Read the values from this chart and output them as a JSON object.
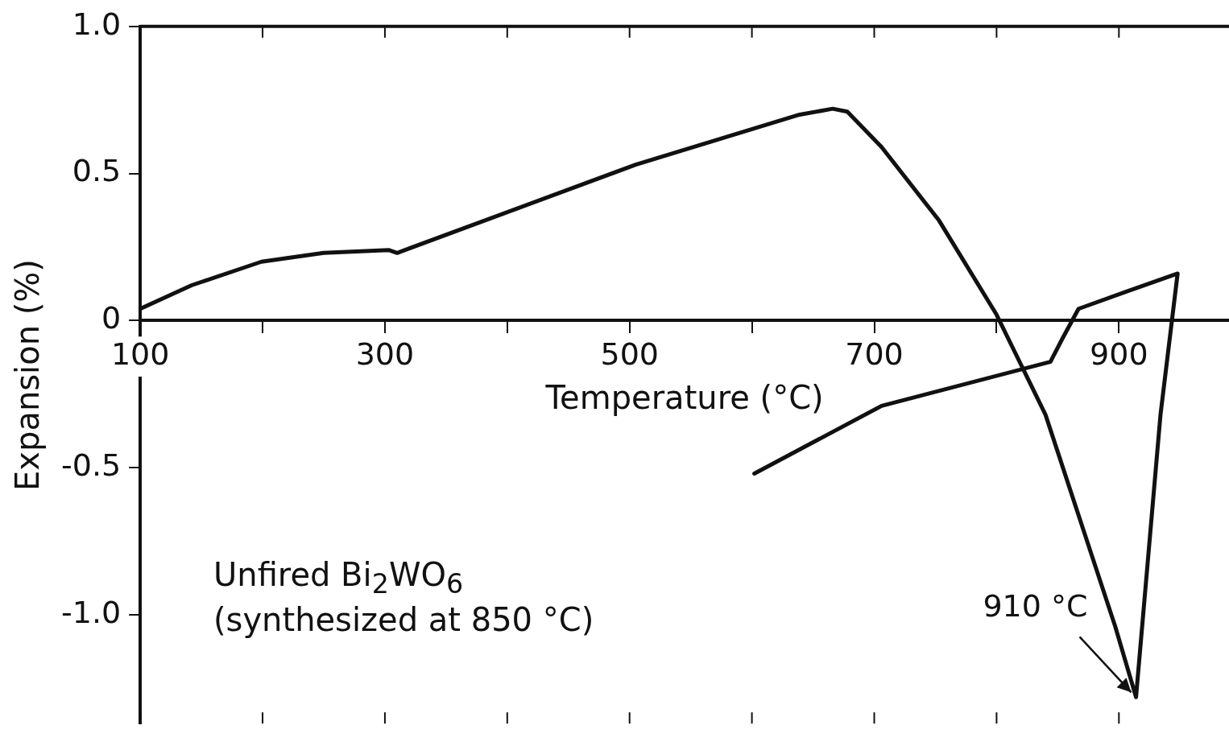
{
  "chart_data": {
    "type": "line",
    "xlabel": "Temperature (°C)",
    "ylabel": "Expansion (%)",
    "x": [
      100,
      142,
      199,
      250,
      303,
      310,
      505,
      639,
      666,
      678,
      706,
      753,
      800,
      840,
      874,
      897,
      914,
      934,
      948,
      907,
      867,
      854,
      844,
      706,
      602
    ],
    "series": [
      {
        "color": "#111111",
        "values": [
          0.04,
          0.12,
          0.2,
          0.23,
          0.24,
          0.23,
          0.53,
          0.7,
          0.72,
          0.71,
          0.59,
          0.34,
          0.02,
          -0.32,
          -0.75,
          -1.04,
          -1.28,
          -0.32,
          0.16,
          0.1,
          0.04,
          -0.06,
          -0.14,
          -0.29,
          -0.52
        ]
      }
    ],
    "xlim": [
      100,
      990
    ],
    "xticks": [
      100,
      {
        "value": 200,
        "label": null
      },
      300,
      {
        "value": 400,
        "label": null
      },
      500,
      {
        "value": 600,
        "label": null
      },
      700,
      {
        "value": 800,
        "label": null
      },
      900
    ],
    "ylim": [
      -1.37,
      1.0
    ],
    "yticks": [
      {
        "value": 1,
        "label": "1.0"
      },
      0.5,
      0,
      -0.5,
      {
        "value": -1,
        "label": "-1.0"
      }
    ],
    "grid": false,
    "legend": false,
    "marker": "none",
    "line_style": "solid",
    "annotations": [
      {
        "text": "910 °C",
        "x": 914,
        "y": -1.28
      },
      "Unfired Bi$_{2}$WO$_{6}$ (synthesized at 850 °C)"
    ]
  }
}
